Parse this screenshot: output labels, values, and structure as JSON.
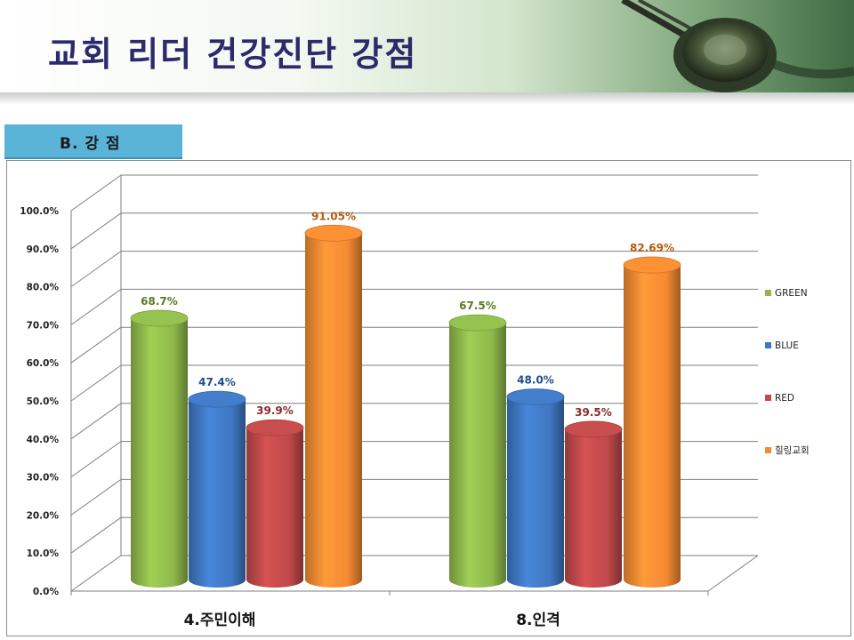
{
  "header": {
    "title": "교회 리더 건강진단 강점"
  },
  "section": {
    "label": "B. 강 점"
  },
  "chart_data": {
    "type": "bar",
    "style": "3d-cylinder",
    "categories": [
      "4.주민이해",
      "8.인격"
    ],
    "series": [
      {
        "name": "GREEN",
        "values": [
          68.7,
          67.5
        ],
        "labels": [
          "68.7%",
          "67.5%"
        ],
        "color": "#8fb94b",
        "label_color": "#5a7a24"
      },
      {
        "name": "BLUE",
        "values": [
          47.4,
          48.0
        ],
        "labels": [
          "47.4%",
          "48.0%"
        ],
        "color": "#3f78c2",
        "label_color": "#1f4e8c"
      },
      {
        "name": "RED",
        "values": [
          39.9,
          39.5
        ],
        "labels": [
          "39.9%",
          "39.5%"
        ],
        "color": "#c0494a",
        "label_color": "#8b2a2a"
      },
      {
        "name": "힐링교회",
        "values": [
          91.05,
          82.69
        ],
        "labels": [
          "91.05%",
          "82.69%"
        ],
        "color": "#f58a32",
        "label_color": "#b85a10"
      }
    ],
    "ylim": [
      0,
      100
    ],
    "yticks": [
      "0.0%",
      "10.0%",
      "20.0%",
      "30.0%",
      "40.0%",
      "50.0%",
      "60.0%",
      "70.0%",
      "80.0%",
      "90.0%",
      "100.0%"
    ],
    "grid": true,
    "legend_position": "right"
  }
}
